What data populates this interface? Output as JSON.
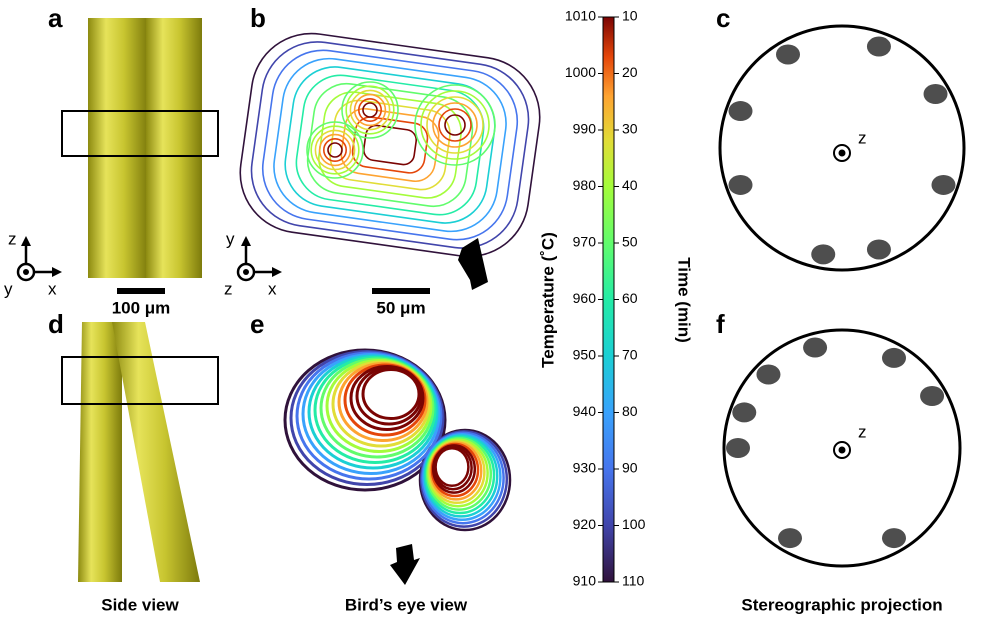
{
  "panels": {
    "a": "a",
    "b": "b",
    "c": "c",
    "d": "d",
    "e": "e",
    "f": "f"
  },
  "axes_a": {
    "up": "z",
    "right": "x",
    "out": "y"
  },
  "axes_b": {
    "up": "y",
    "right": "x",
    "out": "z"
  },
  "scale_bars": {
    "a": "100 μm",
    "b": "50 μm"
  },
  "captions": {
    "side": "Side view",
    "bird": "Bird’s eye view",
    "stereo": "Stereographic projection"
  },
  "stereo_labels": {
    "c": "z",
    "f": "z"
  },
  "colorbar": {
    "temperature_label": "Temperature (˚C)",
    "temperature_ticks": [
      1010,
      1000,
      990,
      980,
      970,
      960,
      950,
      940,
      930,
      920,
      910
    ],
    "time_label": "Time (min)",
    "time_ticks": [
      10,
      20,
      30,
      40,
      50,
      60,
      70,
      80,
      90,
      100,
      110
    ]
  }
}
